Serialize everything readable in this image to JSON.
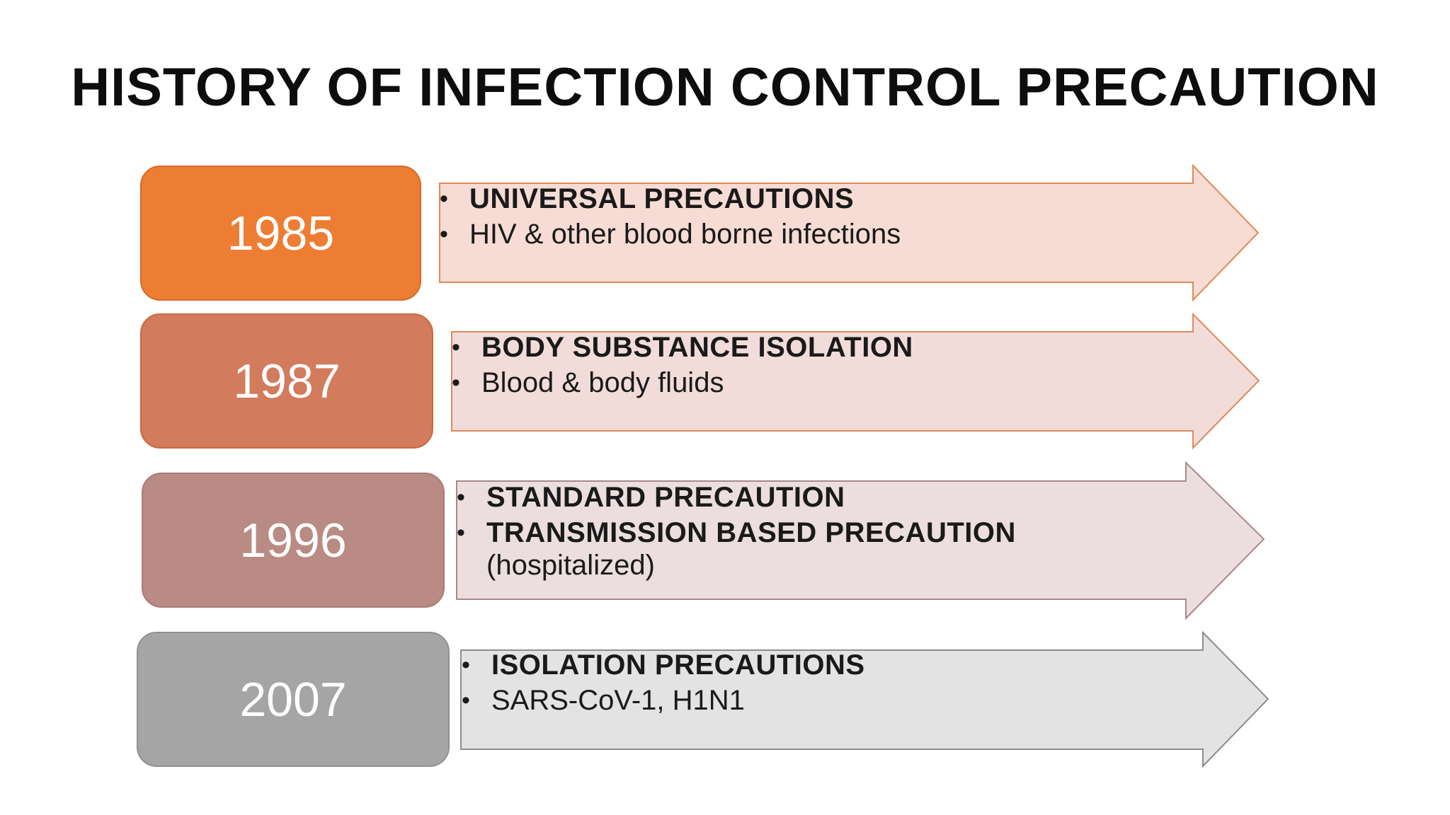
{
  "title": "HISTORY OF INFECTION CONTROL PRECAUTION",
  "rows": [
    {
      "year": "1985",
      "box_color": "#ee7d34",
      "box_border": "#d8692a",
      "arrow_fill": "#f6dcd4",
      "arrow_stroke": "#e08a52",
      "lines": [
        {
          "text": "UNIVERSAL PRECAUTIONS",
          "bold": true
        },
        {
          "text": "HIV & other blood borne infections",
          "bold": false
        }
      ]
    },
    {
      "year": "1987",
      "box_color": "#d37b5d",
      "box_border": "#c86a3c",
      "arrow_fill": "#f2dcda",
      "arrow_stroke": "#dc8a5a",
      "lines": [
        {
          "text": "BODY SUBSTANCE ISOLATION",
          "bold": true
        },
        {
          "text": "Blood & body fluids",
          "bold": false
        }
      ]
    },
    {
      "year": "1996",
      "box_color": "#b98b84",
      "box_border": "#a87c78",
      "arrow_fill": "#ecdede",
      "arrow_stroke": "#a8888a",
      "lines": [
        {
          "text": "STANDARD PRECAUTION",
          "bold": true
        },
        {
          "text": "TRANSMISSION BASED PRECAUTION",
          "bold": true
        },
        {
          "text": "(hospitalized)",
          "bold": false,
          "continuation": true
        }
      ]
    },
    {
      "year": "2007",
      "box_color": "#a6a5a6",
      "box_border": "#919091",
      "arrow_fill": "#e4e3e4",
      "arrow_stroke": "#8e8d8e",
      "lines": [
        {
          "text": "ISOLATION PRECAUTIONS",
          "bold": true
        },
        {
          "text": "SARS-CoV-1, H1N1",
          "bold": false
        }
      ]
    }
  ],
  "bullet_char": "•"
}
